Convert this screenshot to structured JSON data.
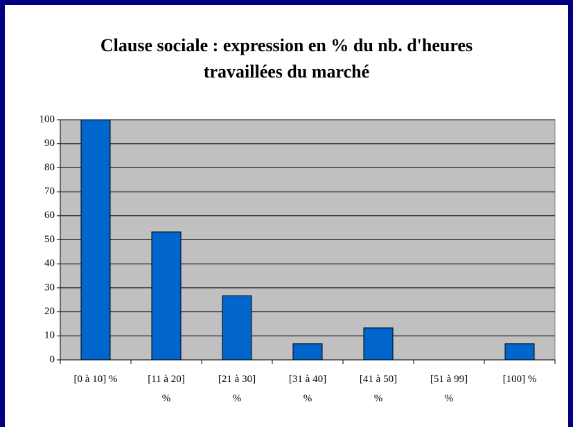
{
  "chart_data": {
    "type": "bar",
    "title": "Clause sociale : expression en % du nb. d'heures\ntravaillées du marché",
    "categories": [
      "[0 à 10] %",
      "[11 à 20]\n%",
      "[21 à 30]\n%",
      "[31 à 40]\n%",
      "[41 à 50]\n%",
      "[51 à 99]\n%",
      "[100] %"
    ],
    "values": [
      100,
      53.3,
      26.7,
      6.7,
      13.3,
      0,
      6.7
    ],
    "color": "#0066cc",
    "ylim": [
      0,
      100
    ],
    "yticks": [
      0,
      10,
      20,
      30,
      40,
      50,
      60,
      70,
      80,
      90,
      100
    ],
    "grid": true
  }
}
